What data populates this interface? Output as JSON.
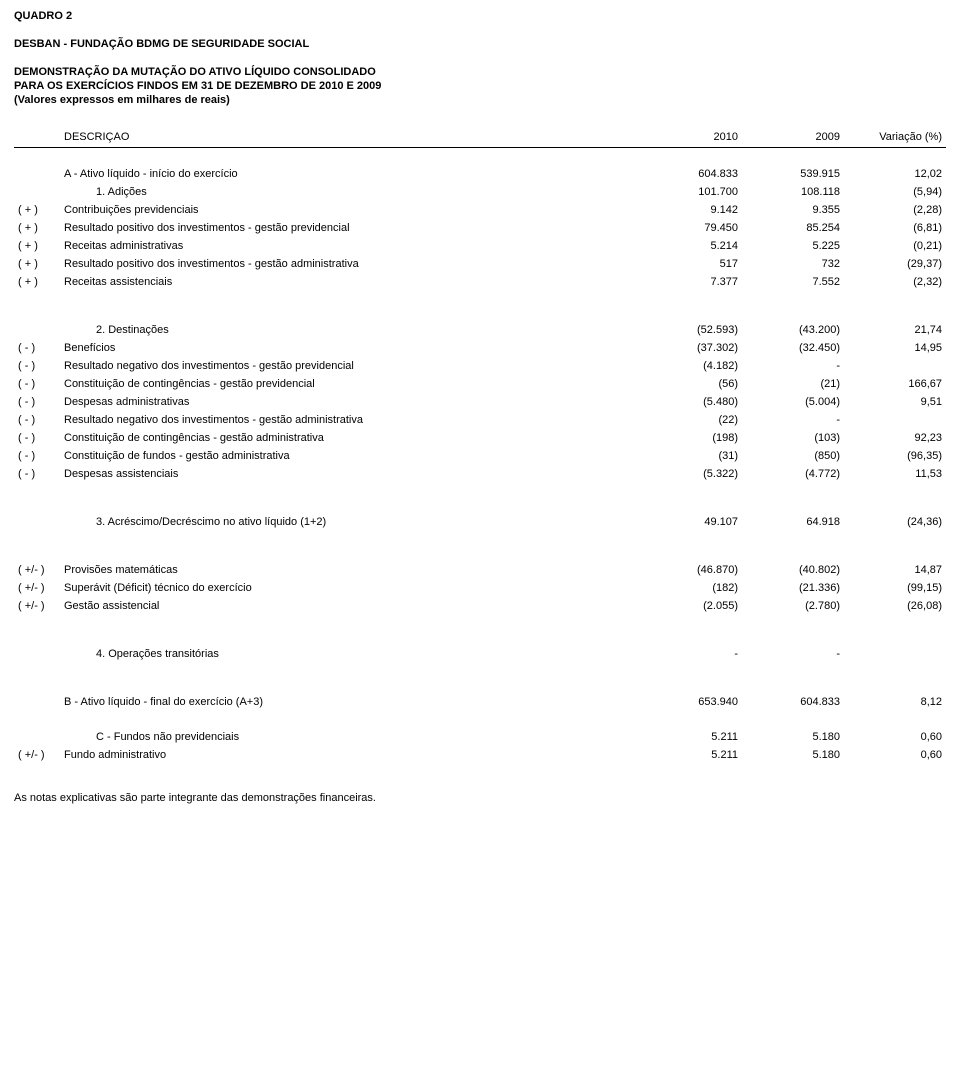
{
  "header": {
    "quadro": "QUADRO 2",
    "org": "DESBAN - FUNDAÇÃO BDMG DE SEGURIDADE SOCIAL",
    "title1": "DEMONSTRAÇÃO DA MUTAÇÃO DO ATIVO LÍQUIDO CONSOLIDADO",
    "title2": "PARA OS EXERCÍCIOS FINDOS EM 31 DE DEZEMBRO DE 2010 E 2009",
    "title3": "(Valores expressos em milhares de reais)"
  },
  "columns": {
    "desc": "DESCRIÇAO",
    "c2010": "2010",
    "c2009": "2009",
    "var": "Variação (%)"
  },
  "rows": [
    {
      "sign": "",
      "desc": "A - Ativo líquido - início do exercício",
      "v1": "604.833",
      "v2": "539.915",
      "v3": "12,02",
      "top": true
    },
    {
      "sign": "",
      "desc": "1. Adições",
      "v1": "101.700",
      "v2": "108.118",
      "v3": "(5,94)",
      "indent": true
    },
    {
      "sign": "( + )",
      "desc": "Contribuições previdenciais",
      "v1": "9.142",
      "v2": "9.355",
      "v3": "(2,28)"
    },
    {
      "sign": "( + )",
      "desc": "Resultado positivo dos investimentos - gestão previdencial",
      "v1": "79.450",
      "v2": "85.254",
      "v3": "(6,81)"
    },
    {
      "sign": "( + )",
      "desc": "Receitas administrativas",
      "v1": "5.214",
      "v2": "5.225",
      "v3": "(0,21)"
    },
    {
      "sign": "( + )",
      "desc": "Resultado positivo dos investimentos - gestão administrativa",
      "v1": "517",
      "v2": "732",
      "v3": "(29,37)"
    },
    {
      "sign": "( + )",
      "desc": "Receitas assistenciais",
      "v1": "7.377",
      "v2": "7.552",
      "v3": "(2,32)"
    },
    {
      "gap": "lg"
    },
    {
      "sign": "",
      "desc": "2. Destinações",
      "v1": "(52.593)",
      "v2": "(43.200)",
      "v3": "21,74",
      "indent": true
    },
    {
      "sign": "( - )",
      "desc": "Benefícios",
      "v1": "(37.302)",
      "v2": "(32.450)",
      "v3": "14,95"
    },
    {
      "sign": "( - )",
      "desc": "Resultado negativo dos investimentos - gestão previdencial",
      "v1": "(4.182)",
      "v2": "-",
      "v3": ""
    },
    {
      "sign": "( - )",
      "desc": "Constituição de contingências - gestão previdencial",
      "v1": "(56)",
      "v2": "(21)",
      "v3": "166,67"
    },
    {
      "sign": "( - )",
      "desc": "Despesas administrativas",
      "v1": "(5.480)",
      "v2": "(5.004)",
      "v3": "9,51"
    },
    {
      "sign": "( - )",
      "desc": "Resultado negativo dos investimentos - gestão administrativa",
      "v1": "(22)",
      "v2": "-",
      "v3": ""
    },
    {
      "sign": "( - )",
      "desc": "Constituição de contingências - gestão administrativa",
      "v1": "(198)",
      "v2": "(103)",
      "v3": "92,23"
    },
    {
      "sign": "( - )",
      "desc": "Constituição de fundos - gestão administrativa",
      "v1": "(31)",
      "v2": "(850)",
      "v3": "(96,35)"
    },
    {
      "sign": "( - )",
      "desc": "Despesas assistenciais",
      "v1": "(5.322)",
      "v2": "(4.772)",
      "v3": "11,53"
    },
    {
      "gap": "lg"
    },
    {
      "sign": "",
      "desc": "3. Acréscimo/Decréscimo no ativo líquido (1+2)",
      "v1": "49.107",
      "v2": "64.918",
      "v3": "(24,36)",
      "indent": true
    },
    {
      "gap": "lg"
    },
    {
      "sign": "( +/- )",
      "desc": "Provisões matemáticas",
      "v1": "(46.870)",
      "v2": "(40.802)",
      "v3": "14,87"
    },
    {
      "sign": "( +/- )",
      "desc": "Superávit (Déficit) técnico do exercício",
      "v1": "(182)",
      "v2": "(21.336)",
      "v3": "(99,15)"
    },
    {
      "sign": "( +/- )",
      "desc": "Gestão assistencial",
      "v1": "(2.055)",
      "v2": "(2.780)",
      "v3": "(26,08)"
    },
    {
      "gap": "lg"
    },
    {
      "sign": "",
      "desc": "4. Operações transitórias",
      "v1": "-",
      "v2": "-",
      "v3": "",
      "indent": true
    },
    {
      "gap": "lg"
    },
    {
      "sign": "",
      "desc": "B - Ativo líquido - final do exercício (A+3)",
      "v1": "653.940",
      "v2": "604.833",
      "v3": "8,12"
    },
    {
      "sign": "",
      "desc": "C - Fundos não previdenciais",
      "v1": "5.211",
      "v2": "5.180",
      "v3": "0,60",
      "indent": true,
      "top": true
    },
    {
      "sign": "( +/- )",
      "desc": "Fundo administrativo",
      "v1": "5.211",
      "v2": "5.180",
      "v3": "0,60"
    }
  ],
  "footnote": "As notas explicativas são parte integrante das demonstrações financeiras."
}
